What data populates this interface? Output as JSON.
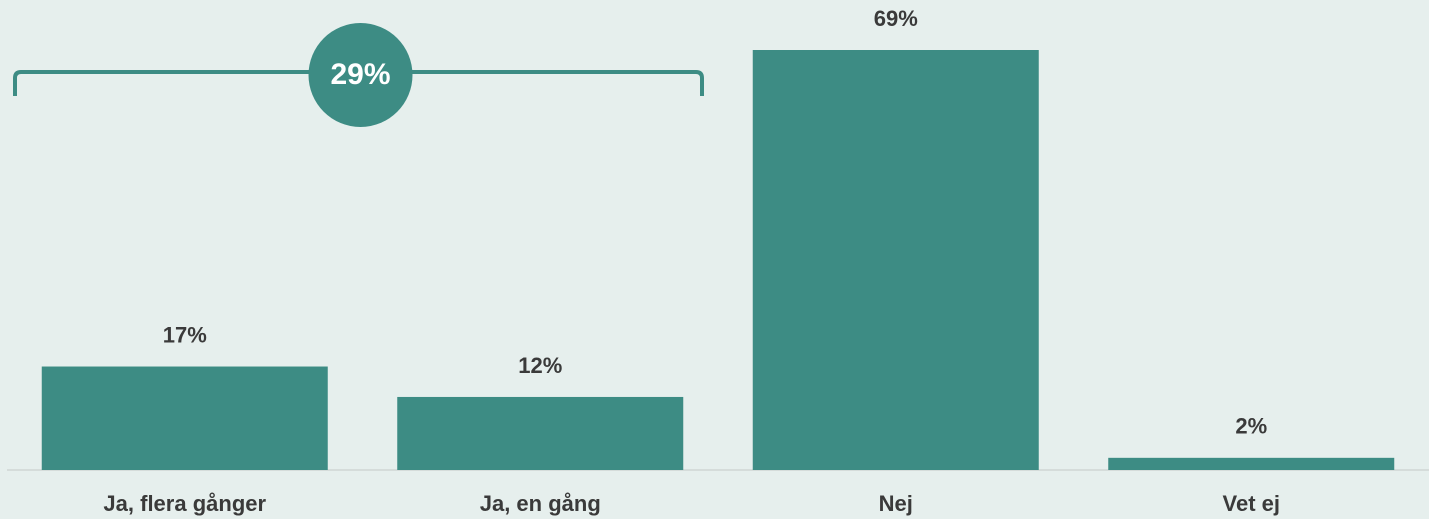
{
  "chart_data": {
    "type": "bar",
    "categories": [
      "Ja, flera gånger",
      "Ja, en gång",
      "Nej",
      "Vet ej"
    ],
    "values": [
      17,
      12,
      69,
      2
    ],
    "value_labels": [
      "17%",
      "12%",
      "69%",
      "2%"
    ],
    "color": "#3d8c84",
    "annotation": "29%"
  }
}
